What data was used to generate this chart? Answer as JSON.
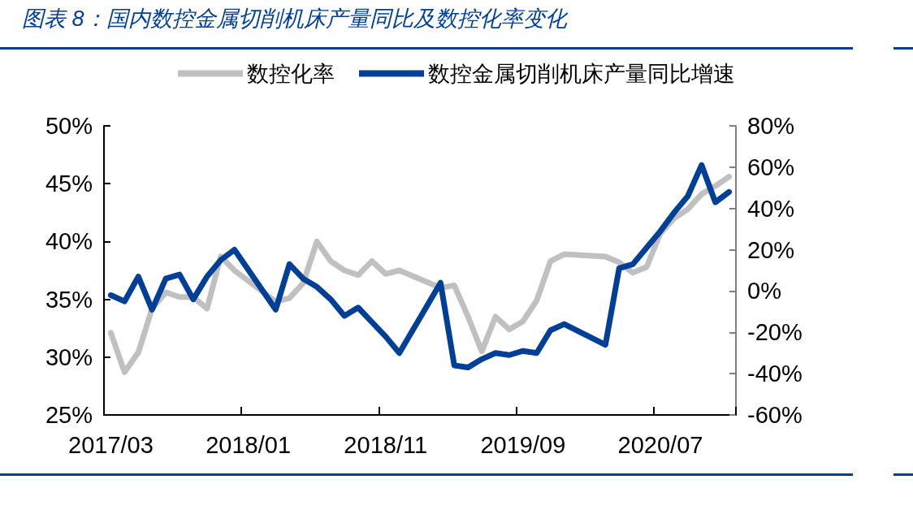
{
  "chart_data": {
    "type": "line",
    "title": "图表 8：国内数控金属切削机床产量同比及数控化率变化",
    "categories": [
      "2017/03",
      null,
      null,
      null,
      null,
      null,
      null,
      null,
      null,
      null,
      "2018/01",
      null,
      null,
      null,
      null,
      null,
      null,
      null,
      null,
      null,
      "2018/11",
      null,
      null,
      null,
      null,
      null,
      null,
      null,
      null,
      null,
      "2019/09",
      null,
      null,
      null,
      null,
      null,
      null,
      null,
      null,
      null,
      "2020/07",
      null,
      null,
      null,
      null,
      null
    ],
    "series": [
      {
        "name": "数控化率",
        "color": "#c0c0c0",
        "values": [
          32.1,
          28.7,
          30.4,
          34.2,
          35.6,
          35.2,
          35.2,
          34.2,
          38.7,
          37.5,
          null,
          null,
          34.8,
          35.1,
          36.4,
          40.0,
          38.3,
          37.5,
          37.1,
          38.3,
          37.2,
          37.5,
          null,
          null,
          36.0,
          36.2,
          33.5,
          30.5,
          33.5,
          32.4,
          33.1,
          34.9,
          38.3,
          38.9,
          null,
          null,
          38.7,
          38.2,
          37.3,
          37.8,
          40.7,
          42.0,
          42.8,
          44.1,
          44.8,
          45.6
        ]
      },
      {
        "name": "数控金属切削机床产量同比增速",
        "color": "#003f98",
        "axis": "y2",
        "values": [
          -2,
          -5,
          7,
          -9,
          6,
          8,
          -4,
          7,
          15,
          20,
          null,
          null,
          -9,
          13,
          6,
          2,
          -4,
          -12,
          -8,
          -15,
          -22,
          -30,
          null,
          null,
          4,
          -36,
          -37,
          -33,
          -30,
          -31,
          -29,
          -30,
          -19,
          -16,
          null,
          null,
          -26,
          11,
          13,
          21,
          29,
          38,
          46,
          61,
          43,
          48
        ]
      }
    ],
    "ylim": [
      25,
      50
    ],
    "yticks": [
      {
        "value": 25,
        "label": "25%"
      },
      {
        "value": 30,
        "label": "30%"
      },
      {
        "value": 35,
        "label": "35%"
      },
      {
        "value": 40,
        "label": "40%"
      },
      {
        "value": 45,
        "label": "45%"
      },
      {
        "value": 50,
        "label": "50%"
      }
    ],
    "y2lim": [
      -60,
      80
    ],
    "y2ticks": [
      {
        "value": -60,
        "label": "-60%"
      },
      {
        "value": -40,
        "label": "-40%"
      },
      {
        "value": -20,
        "label": "-20%"
      },
      {
        "value": 0,
        "label": "0%"
      },
      {
        "value": 20,
        "label": "20%"
      },
      {
        "value": 40,
        "label": "40%"
      },
      {
        "value": 60,
        "label": "60%"
      },
      {
        "value": 80,
        "label": "80%"
      }
    ],
    "grid": false,
    "legend": "top",
    "marker": "none",
    "line_style": "solid"
  }
}
